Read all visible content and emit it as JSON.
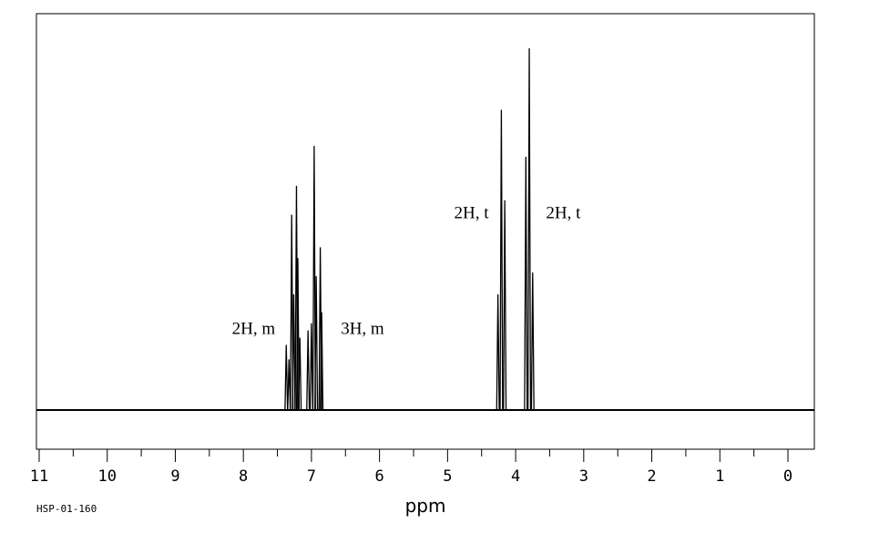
{
  "chart_data": {
    "type": "line",
    "title": "",
    "xlabel": "ppm",
    "ylabel": "",
    "xlim": [
      11,
      0
    ],
    "x_direction": "reversed",
    "grid": false,
    "x_ticks": [
      11,
      10,
      9,
      8,
      7,
      6,
      5,
      4,
      3,
      2,
      1,
      0
    ],
    "x_tick_labels": [
      "11",
      "10",
      "9",
      "8",
      "7",
      "6",
      "5",
      "4",
      "3",
      "2",
      "1",
      "0"
    ],
    "spectrum_id": "HSP-01-160",
    "peaks": [
      {
        "ppm": 7.37,
        "height": 0.18
      },
      {
        "ppm": 7.33,
        "height": 0.14
      },
      {
        "ppm": 7.29,
        "height": 0.54
      },
      {
        "ppm": 7.26,
        "height": 0.32
      },
      {
        "ppm": 7.22,
        "height": 0.62
      },
      {
        "ppm": 7.2,
        "height": 0.42
      },
      {
        "ppm": 7.17,
        "height": 0.2
      },
      {
        "ppm": 7.05,
        "height": 0.22
      },
      {
        "ppm": 7.0,
        "height": 0.24
      },
      {
        "ppm": 6.96,
        "height": 0.73
      },
      {
        "ppm": 6.93,
        "height": 0.37
      },
      {
        "ppm": 6.87,
        "height": 0.45
      },
      {
        "ppm": 6.85,
        "height": 0.27
      },
      {
        "ppm": 4.26,
        "height": 0.32
      },
      {
        "ppm": 4.21,
        "height": 0.83
      },
      {
        "ppm": 4.16,
        "height": 0.58
      },
      {
        "ppm": 3.85,
        "height": 0.7
      },
      {
        "ppm": 3.8,
        "height": 1.0
      },
      {
        "ppm": 3.75,
        "height": 0.38
      }
    ],
    "annotations": [
      {
        "text": "2H, m",
        "ppm": 7.85,
        "height": 0.21
      },
      {
        "text": "3H, m",
        "ppm": 6.25,
        "height": 0.21
      },
      {
        "text": "2H, t",
        "ppm": 4.65,
        "height": 0.53
      },
      {
        "text": "2H, t",
        "ppm": 3.3,
        "height": 0.53
      }
    ]
  }
}
